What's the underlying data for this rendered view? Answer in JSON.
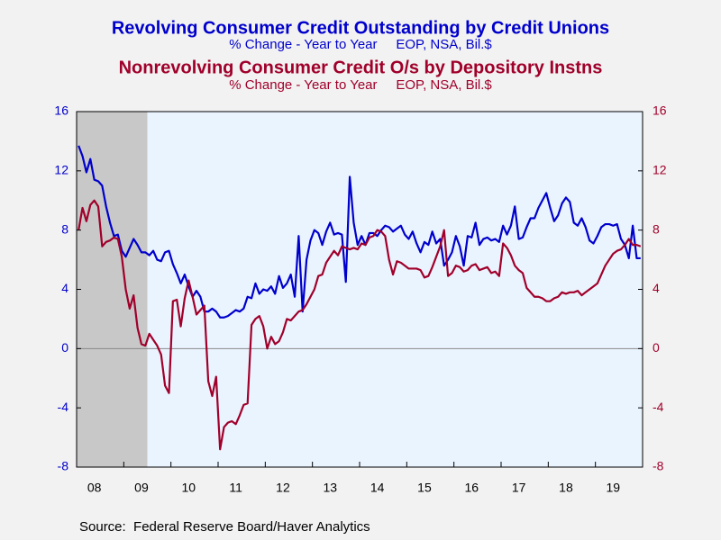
{
  "chart_data": {
    "type": "line",
    "series": [
      {
        "name": "Revolving Consumer Credit Outstanding by Credit Unions",
        "subtitle": "% Change - Year to Year     EOP, NSA, Bil.$",
        "color": "#0000cc",
        "values": [
          13.7,
          13.0,
          11.9,
          12.8,
          11.4,
          11.3,
          11.0,
          9.6,
          8.5,
          7.6,
          7.7,
          6.6,
          6.2,
          6.8,
          7.4,
          7.0,
          6.5,
          6.5,
          6.3,
          6.6,
          6.0,
          5.9,
          6.5,
          6.6,
          5.7,
          5.1,
          4.4,
          5.0,
          4.2,
          3.5,
          3.9,
          3.5,
          2.5,
          2.5,
          2.7,
          2.5,
          2.1,
          2.1,
          2.2,
          2.4,
          2.6,
          2.5,
          2.7,
          3.5,
          3.4,
          4.4,
          3.7,
          4.0,
          3.9,
          4.2,
          3.7,
          4.9,
          4.1,
          4.4,
          5.0,
          3.5,
          7.6,
          2.5,
          6.0,
          7.3,
          8.0,
          7.8,
          7.0,
          7.9,
          8.5,
          7.7,
          7.8,
          7.7,
          4.5,
          11.6,
          8.5,
          7.0,
          7.6,
          7.0,
          7.8,
          7.8,
          7.6,
          8.0,
          8.3,
          8.2,
          7.9,
          8.1,
          8.3,
          7.7,
          7.4,
          7.9,
          7.1,
          6.5,
          7.2,
          7.0,
          7.9,
          7.1,
          7.4,
          5.6,
          6.0,
          6.5,
          7.6,
          6.9,
          5.6,
          7.6,
          7.5,
          8.5,
          7.0,
          7.4,
          7.5,
          7.3,
          7.4,
          7.2,
          8.3,
          7.7,
          8.3,
          9.6,
          7.4,
          7.5,
          8.2,
          8.8,
          8.8,
          9.5,
          10.0,
          10.5,
          9.5,
          8.6,
          9.0,
          9.8,
          10.2,
          9.9,
          8.5,
          8.3,
          8.8,
          8.2,
          7.3,
          7.1,
          7.6,
          8.2,
          8.4,
          8.4,
          8.3,
          8.4,
          7.4,
          7.0,
          6.1,
          8.3,
          6.1,
          6.1
        ]
      },
      {
        "name": "Nonrevolving Consumer Credit O/s by Depository Instns",
        "subtitle": "% Change - Year to Year     EOP, NSA, Bil.$",
        "color": "#a0002a",
        "axis": "y2",
        "values": [
          8.0,
          9.5,
          8.6,
          9.7,
          10.0,
          9.6,
          6.9,
          7.2,
          7.3,
          7.5,
          7.4,
          6.2,
          4.0,
          2.7,
          3.6,
          1.4,
          0.3,
          0.2,
          1.0,
          0.6,
          0.2,
          -0.4,
          -2.5,
          -3.0,
          3.2,
          3.3,
          1.5,
          3.4,
          4.6,
          3.5,
          2.3,
          2.6,
          2.9,
          -2.2,
          -3.2,
          -1.9,
          -6.8,
          -5.3,
          -5.0,
          -4.9,
          -5.1,
          -4.5,
          -3.8,
          -3.7,
          1.6,
          2.0,
          2.2,
          1.5,
          0.0,
          0.8,
          0.3,
          0.5,
          1.1,
          2.0,
          1.9,
          2.2,
          2.5,
          2.6,
          3.0,
          3.5,
          4.0,
          4.9,
          5.0,
          5.8,
          6.2,
          6.6,
          6.3,
          6.9,
          6.8,
          6.7,
          6.8,
          6.7,
          7.1,
          7.0,
          7.5,
          7.6,
          8.0,
          7.9,
          7.6,
          6.0,
          5.0,
          5.9,
          5.8,
          5.6,
          5.4,
          5.4,
          5.4,
          5.3,
          4.8,
          4.9,
          5.5,
          6.2,
          6.9,
          8.0,
          4.9,
          5.1,
          5.6,
          5.5,
          5.2,
          5.3,
          5.6,
          5.7,
          5.3,
          5.4,
          5.5,
          5.1,
          5.2,
          4.9,
          7.1,
          6.8,
          6.3,
          5.6,
          5.3,
          5.1,
          4.1,
          3.8,
          3.5,
          3.5,
          3.4,
          3.2,
          3.2,
          3.4,
          3.5,
          3.8,
          3.7,
          3.8,
          3.8,
          3.9,
          3.6,
          3.8,
          4.0,
          4.2,
          4.4,
          5.0,
          5.6,
          6.0,
          6.4,
          6.6,
          6.7,
          7.0,
          7.4,
          7.0,
          7.0,
          6.9
        ]
      }
    ],
    "categories": [
      null,
      null,
      null,
      null,
      "08",
      null,
      null,
      null,
      null,
      null,
      null,
      null,
      null,
      null,
      null,
      null,
      "09",
      null,
      null,
      null,
      null,
      null,
      null,
      null,
      null,
      null,
      null,
      null,
      "10",
      null,
      null,
      null,
      null,
      null,
      null,
      null,
      null,
      null,
      null,
      null,
      "11",
      null,
      null,
      null,
      null,
      null,
      null,
      null,
      null,
      null,
      null,
      null,
      "12",
      null,
      null,
      null,
      null,
      null,
      null,
      null,
      null,
      null,
      null,
      null,
      "13",
      null,
      null,
      null,
      null,
      null,
      null,
      null,
      null,
      null,
      null,
      null,
      "14",
      null,
      null,
      null,
      null,
      null,
      null,
      null,
      null,
      null,
      null,
      null,
      "15",
      null,
      null,
      null,
      null,
      null,
      null,
      null,
      null,
      null,
      null,
      null,
      "16",
      null,
      null,
      null,
      null,
      null,
      null,
      null,
      null,
      null,
      null,
      null,
      "17",
      null,
      null,
      null,
      null,
      null,
      null,
      null,
      null,
      null,
      null,
      null,
      "18",
      null,
      null,
      null,
      null,
      null,
      null,
      null,
      null,
      null,
      null,
      null,
      "19",
      null,
      null,
      null,
      null,
      null,
      null,
      null
    ],
    "ylim": [
      -8,
      16
    ],
    "yticks": [
      -8,
      -4,
      0,
      4,
      8,
      12,
      16
    ],
    "y2lim": [
      -8,
      16
    ],
    "y2ticks": [
      -8,
      -4,
      0,
      4,
      8,
      12,
      16
    ],
    "shaded_range": [
      0,
      17
    ],
    "zero_line": true,
    "source": "Source:  Federal Reserve Board/Haver Analytics"
  }
}
